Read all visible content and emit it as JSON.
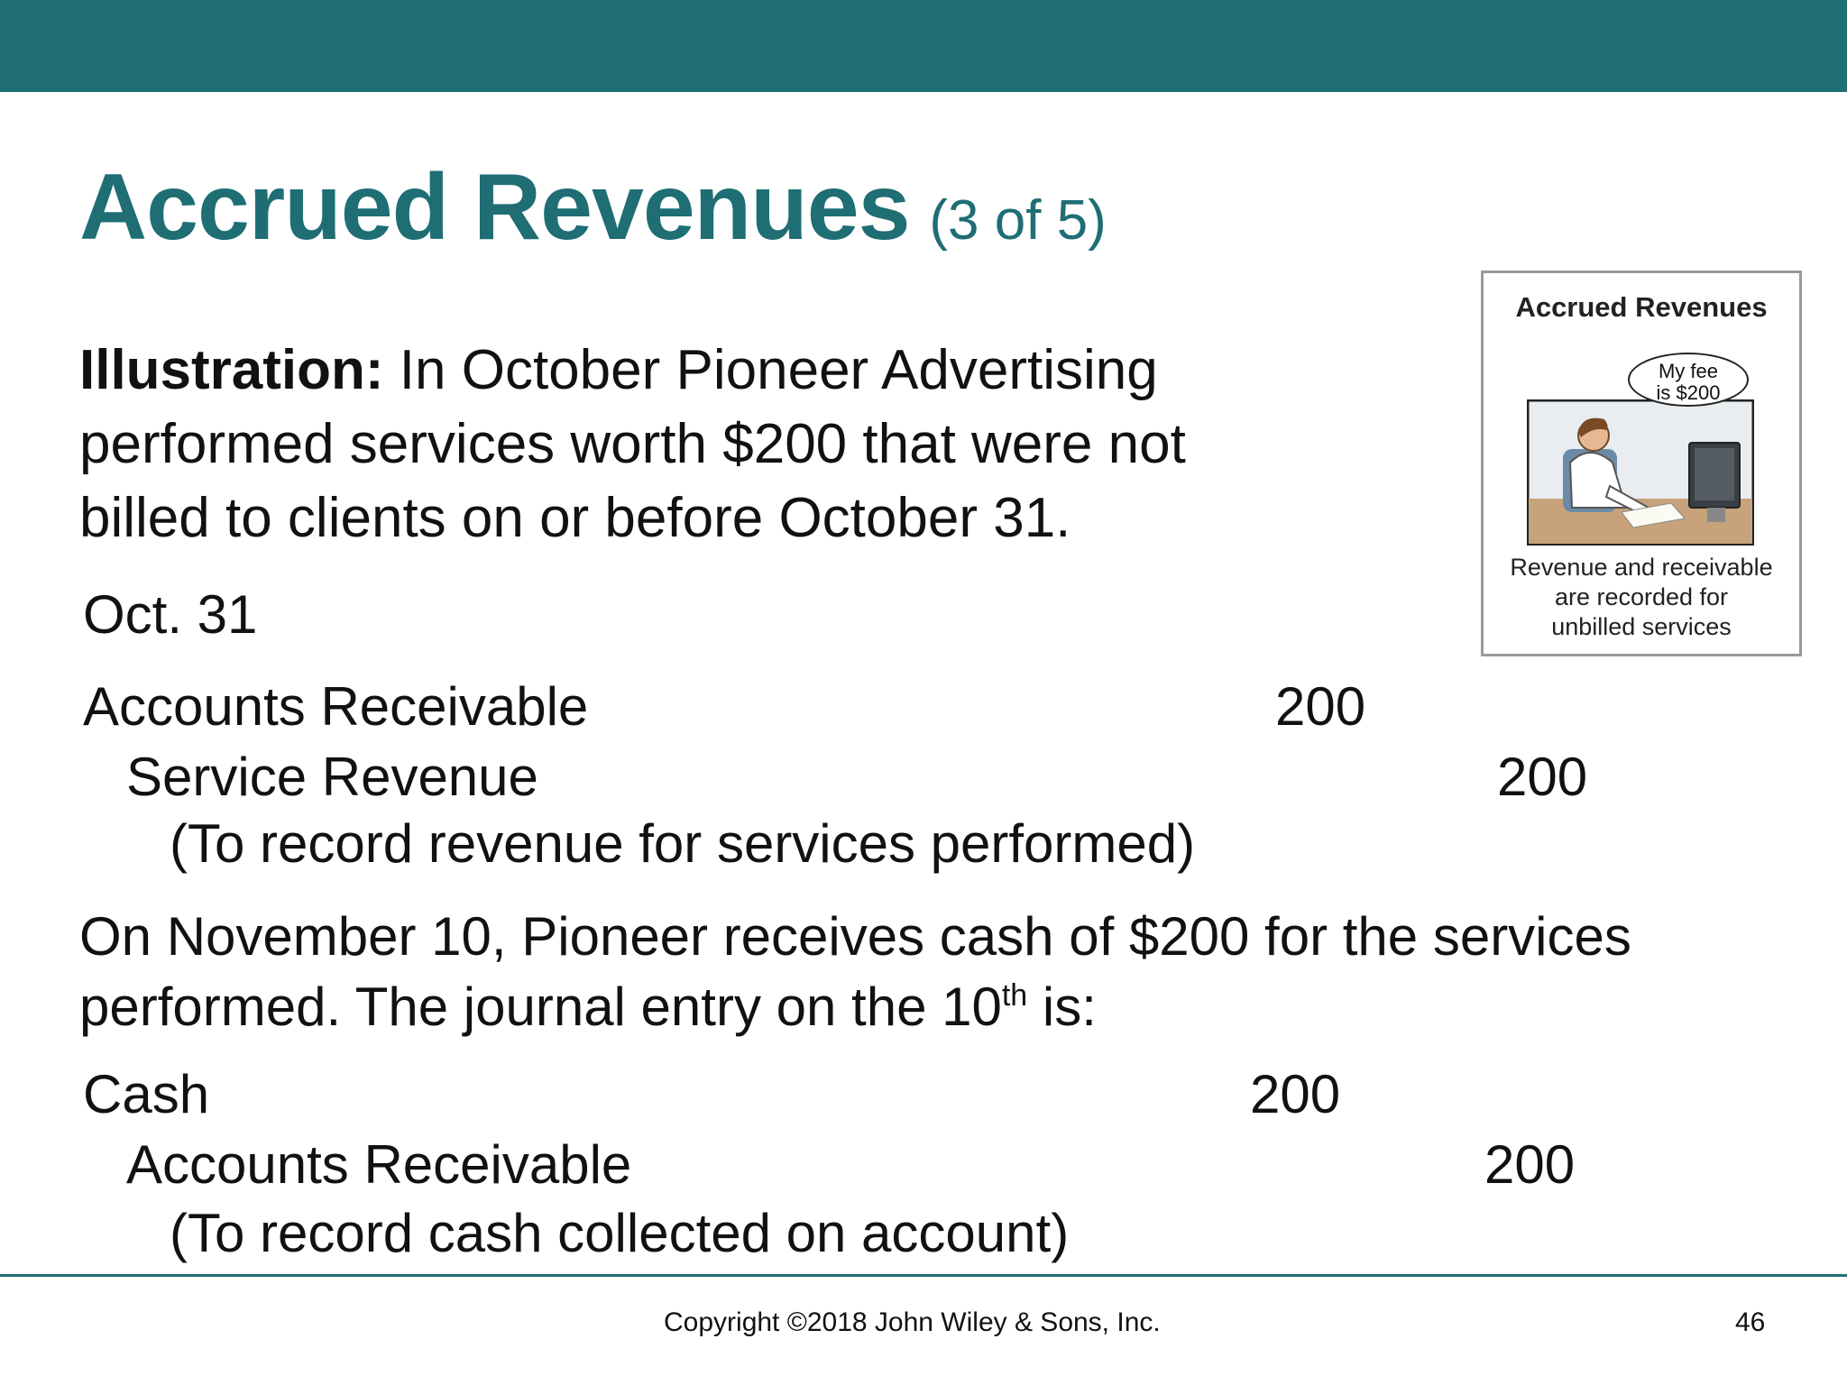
{
  "slide": {
    "title": "Accrued Revenues",
    "title_suffix": "(3 of 5)"
  },
  "illustration": {
    "label": "Illustration:",
    "text": "In October Pioneer Advertising performed services worth $200 that were not billed to clients on or before October 31."
  },
  "entry1": {
    "date": "Oct. 31",
    "debit_account": "Accounts Receivable",
    "debit_amount": "200",
    "credit_account": "Service Revenue",
    "credit_amount": "200",
    "explanation": "(To record revenue for services performed)"
  },
  "paragraph": {
    "text_before": "On November 10, Pioneer receives cash of $200 for the services performed. The journal entry on the 10",
    "superscript": "th",
    "text_after": " is:"
  },
  "entry2": {
    "debit_account": "Cash",
    "debit_amount": "200",
    "credit_account": "Accounts Receivable",
    "credit_amount": "200",
    "explanation": "(To record cash collected on account)"
  },
  "cartoon": {
    "title": "Accrued Revenues",
    "bubble_line1": "My fee",
    "bubble_line2": "is $200",
    "caption_line1": "Revenue and receivable",
    "caption_line2": "are recorded for",
    "caption_line3": "unbilled services"
  },
  "footer": {
    "copyright": "Copyright ©2018 John Wiley & Sons, Inc.",
    "page_number": "46"
  },
  "colors": {
    "brand_teal": "#1e6e74"
  }
}
